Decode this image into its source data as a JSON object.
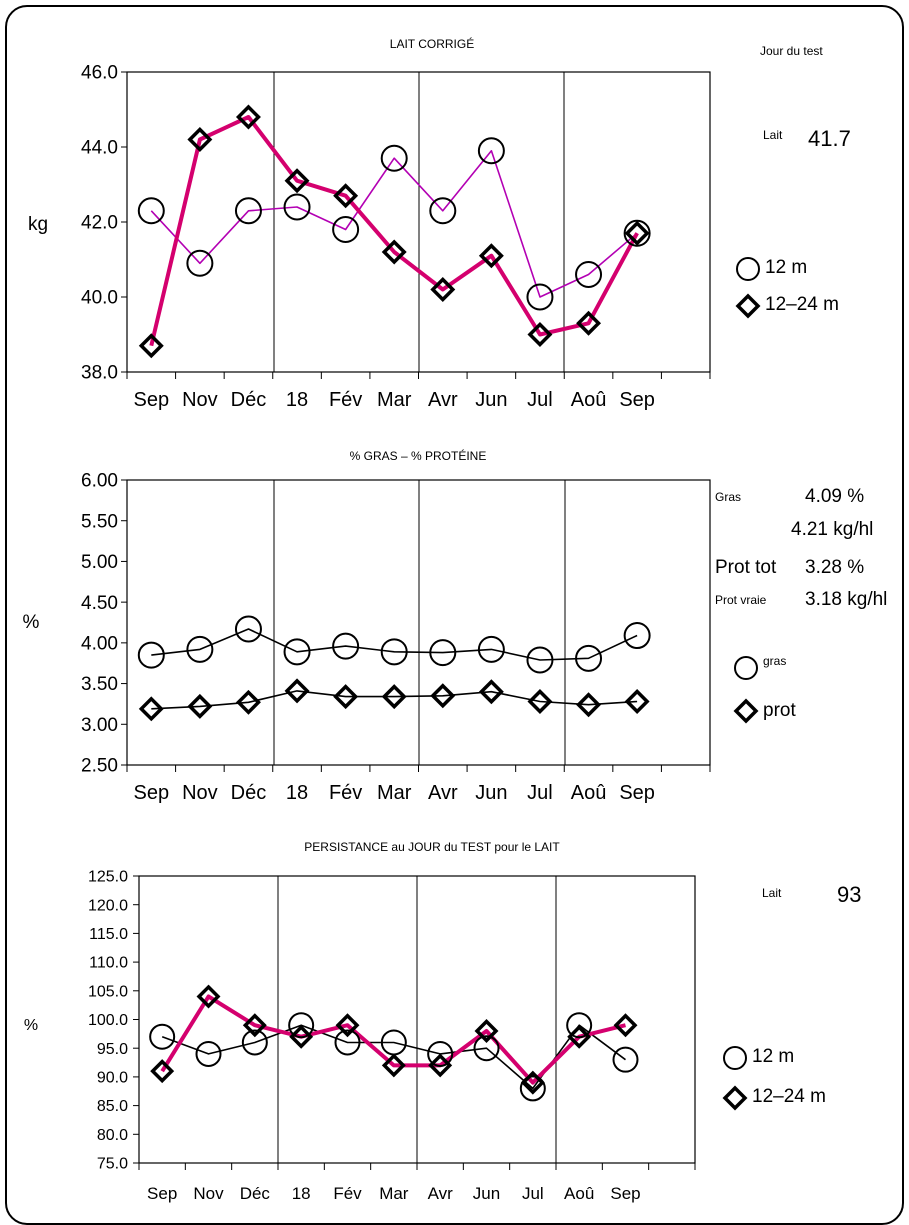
{
  "colors": {
    "magenta": "#d4006e",
    "purple": "#b300b3",
    "black": "#000000"
  },
  "months": [
    "Sep",
    "Nov",
    "Déc",
    "18",
    "Fév",
    "Mar",
    "Avr",
    "Jun",
    "Jul",
    "Aoû",
    "Sep"
  ],
  "chart_data": [
    {
      "type": "line",
      "title": "LAIT CORRIGÉ",
      "ylabel": "kg",
      "xlabel": "",
      "categories": [
        "Sep",
        "Nov",
        "Déc",
        "18",
        "Fév",
        "Mar",
        "Avr",
        "Jun",
        "Jul",
        "Aoû",
        "Sep"
      ],
      "ylim": [
        38.0,
        46.0
      ],
      "yticks": [
        "38.0",
        "40.0",
        "42.0",
        "44.0",
        "46.0"
      ],
      "grid": "vertical lines at quarter boundaries",
      "legend_position": "right",
      "series": [
        {
          "name": "12 m",
          "marker": "circle",
          "values": [
            42.3,
            40.9,
            42.3,
            42.4,
            41.8,
            43.7,
            42.3,
            43.9,
            40.0,
            40.6,
            41.7
          ]
        },
        {
          "name": "12–24 m",
          "marker": "diamond",
          "values": [
            38.7,
            44.2,
            44.8,
            43.1,
            42.7,
            41.2,
            40.2,
            41.1,
            39.0,
            39.3,
            41.7
          ]
        }
      ]
    },
    {
      "type": "line",
      "title": "% GRAS – % PROTÉINE",
      "ylabel": "%",
      "xlabel": "",
      "categories": [
        "Sep",
        "Nov",
        "Déc",
        "18",
        "Fév",
        "Mar",
        "Avr",
        "Jun",
        "Jul",
        "Aoû",
        "Sep"
      ],
      "ylim": [
        2.5,
        6.0
      ],
      "yticks": [
        "2.50",
        "3.00",
        "3.50",
        "4.00",
        "4.50",
        "5.00",
        "5.50",
        "6.00"
      ],
      "grid": "vertical lines at quarter boundaries",
      "legend_position": "right",
      "series": [
        {
          "name": "gras",
          "marker": "circle",
          "values": [
            3.85,
            3.92,
            4.17,
            3.89,
            3.96,
            3.89,
            3.88,
            3.92,
            3.79,
            3.81,
            4.09
          ]
        },
        {
          "name": "prot",
          "marker": "diamond",
          "values": [
            3.19,
            3.22,
            3.27,
            3.41,
            3.34,
            3.34,
            3.35,
            3.4,
            3.28,
            3.24,
            3.28
          ]
        }
      ]
    },
    {
      "type": "line",
      "title": "PERSISTANCE au JOUR du TEST pour le LAIT",
      "ylabel": "%",
      "xlabel": "",
      "categories": [
        "Sep",
        "Nov",
        "Déc",
        "18",
        "Fév",
        "Mar",
        "Avr",
        "Jun",
        "Jul",
        "Aoû",
        "Sep"
      ],
      "ylim": [
        75.0,
        125.0
      ],
      "yticks": [
        "75.0",
        "80.0",
        "85.0",
        "90.0",
        "95.0",
        "100.0",
        "105.0",
        "110.0",
        "115.0",
        "120.0",
        "125.0"
      ],
      "grid": "vertical lines at quarter boundaries",
      "legend_position": "right",
      "series": [
        {
          "name": "12 m",
          "marker": "circle",
          "values": [
            97,
            94,
            96,
            99,
            96,
            96,
            94,
            95,
            88,
            99,
            93
          ]
        },
        {
          "name": "12–24 m",
          "marker": "diamond",
          "values": [
            91,
            104,
            99,
            97,
            99,
            92,
            92,
            98,
            89,
            97,
            99
          ]
        }
      ]
    }
  ],
  "side": {
    "jour_du_test": "Jour du test",
    "lait_label": "Lait",
    "lait_value": "41.7",
    "legend1_a": "12 m",
    "legend1_b": "12–24 m",
    "gras_label": "Gras",
    "gras_pct": "4.09 %",
    "gras_kghl": "4.21 kg/hl",
    "prot_tot_label": "Prot tot",
    "prot_tot_pct": "3.28 %",
    "prot_vraie_label": "Prot vraie",
    "prot_vraie_kghl": "3.18 kg/hl",
    "legend2_a": "gras",
    "legend2_b": "prot",
    "lait3_label": "Lait",
    "lait3_value": "93",
    "legend3_a": "12 m",
    "legend3_b": "12–24 m"
  }
}
